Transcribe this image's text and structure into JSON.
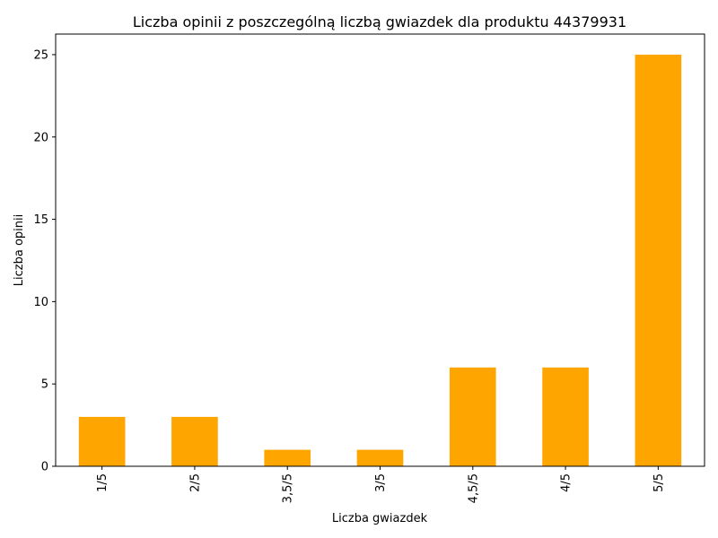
{
  "chart_data": {
    "type": "bar",
    "title": "Liczba opinii z poszczególną liczbą gwiazdek dla produktu 44379931",
    "xlabel": "Liczba gwiazdek",
    "ylabel": "Liczba opinii",
    "categories": [
      "1/5",
      "2/5",
      "3,5/5",
      "3/5",
      "4,5/5",
      "4/5",
      "5/5"
    ],
    "values": [
      3,
      3,
      1,
      1,
      6,
      6,
      25
    ],
    "ylim": [
      0,
      26.25
    ],
    "yticks": [
      0,
      5,
      10,
      15,
      20,
      25
    ],
    "bar_color": "#ffa500",
    "grid": false,
    "legend": "none"
  }
}
